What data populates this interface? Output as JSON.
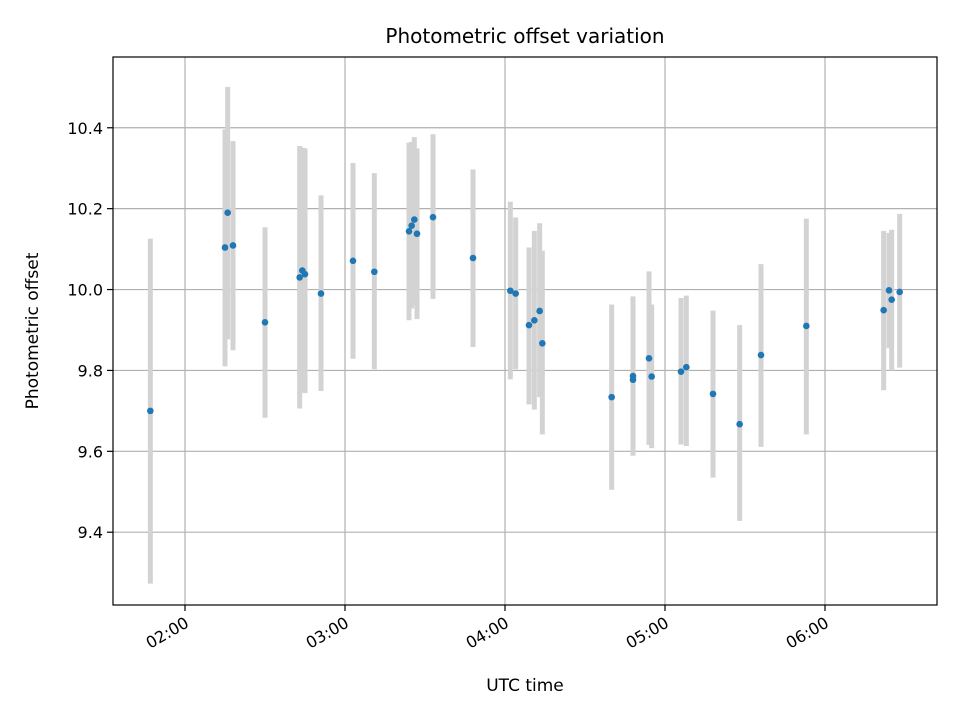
{
  "chart_data": {
    "type": "scatter",
    "title": "Photometric offset variation",
    "xlabel": "UTC time",
    "ylabel": "Photometric offset",
    "x_unit": "UTC time (HH:MM)",
    "xlim": [
      "01:33",
      "06:42"
    ],
    "ylim": [
      9.22,
      10.575
    ],
    "x_ticks": [
      "02:00",
      "03:00",
      "04:00",
      "05:00",
      "06:00"
    ],
    "y_ticks": [
      "9.4",
      "9.6",
      "9.8",
      "10.0",
      "10.2",
      "10.4"
    ],
    "grid": true,
    "legend": "none",
    "colors": {
      "points": "#1f77b4",
      "error_bars": "#d3d3d3",
      "grid": "#b0b0b0"
    },
    "series": [
      {
        "x": [
          "01:47",
          "02:15",
          "02:16",
          "02:18",
          "02:30",
          "02:43",
          "02:44",
          "02:45",
          "02:51",
          "03:03",
          "03:11",
          "03:24",
          "03:25",
          "03:26",
          "03:27",
          "03:33",
          "03:48",
          "04:02",
          "04:04",
          "04:09",
          "04:11",
          "04:13",
          "04:14",
          "04:40",
          "04:48",
          "04:48",
          "04:54",
          "04:55",
          "05:06",
          "05:08",
          "05:18",
          "05:28",
          "05:36",
          "05:53",
          "06:22",
          "06:24",
          "06:25",
          "06:28"
        ],
        "y": [
          9.7,
          10.104,
          10.19,
          10.109,
          9.919,
          10.03,
          10.047,
          10.038,
          9.99,
          10.071,
          10.044,
          10.144,
          10.158,
          10.173,
          10.138,
          10.179,
          10.078,
          9.997,
          9.99,
          9.912,
          9.924,
          9.947,
          9.867,
          9.734,
          9.786,
          9.777,
          9.83,
          9.785,
          9.797,
          9.808,
          9.742,
          9.667,
          9.838,
          9.91,
          9.949,
          9.998,
          9.975,
          9.994
        ],
        "yerr_low": [
          9.273,
          9.81,
          9.877,
          9.85,
          9.683,
          9.706,
          9.747,
          9.744,
          9.749,
          9.829,
          9.803,
          9.924,
          9.953,
          9.962,
          9.927,
          9.977,
          9.858,
          9.778,
          9.803,
          9.716,
          9.703,
          9.734,
          9.642,
          9.505,
          9.592,
          9.589,
          9.616,
          9.608,
          9.617,
          9.613,
          9.535,
          9.428,
          9.611,
          9.642,
          9.751,
          9.855,
          9.8,
          9.807
        ],
        "yerr_high": [
          10.126,
          10.396,
          10.501,
          10.367,
          10.154,
          10.355,
          10.351,
          10.349,
          10.233,
          10.313,
          10.288,
          10.363,
          10.365,
          10.377,
          10.349,
          10.384,
          10.297,
          10.217,
          10.178,
          10.104,
          10.145,
          10.164,
          10.096,
          9.963,
          9.983,
          9.975,
          10.045,
          9.963,
          9.979,
          9.985,
          9.948,
          9.912,
          10.063,
          10.175,
          10.145,
          10.14,
          10.148,
          10.187
        ]
      }
    ]
  }
}
